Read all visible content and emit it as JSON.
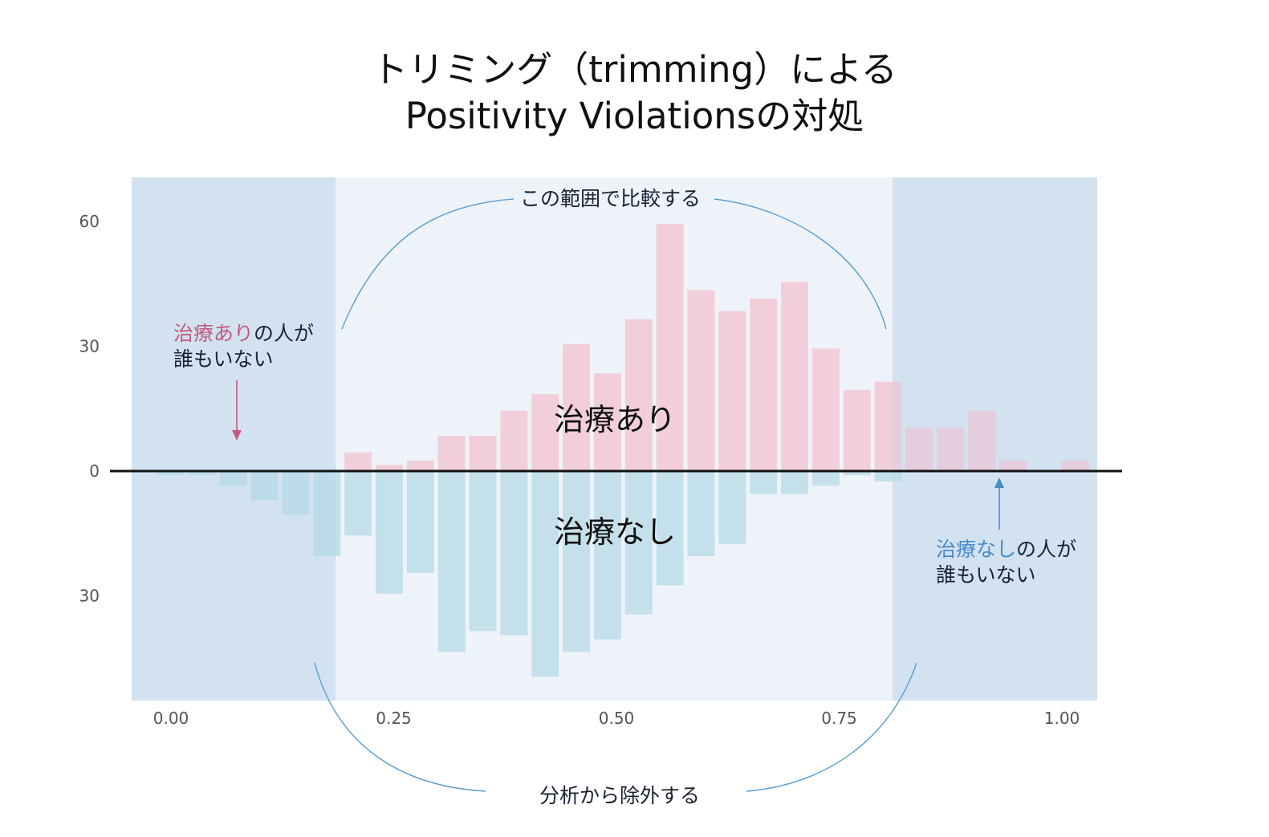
{
  "title": {
    "line1": "トリミング（trimming）による",
    "line2": "Positivity Violationsの対処"
  },
  "annotations": {
    "compare_range": "この範囲で比較する",
    "exclude": "分析から除外する",
    "treated_label": "治療あり",
    "untreated_label": "治療なし",
    "left_note_colored": "治療あり",
    "left_note_rest": "の人が",
    "left_note_line2": "誰もいない",
    "right_note_colored": "治療なし",
    "right_note_rest": "の人が",
    "right_note_line2": "誰もいない"
  },
  "colors": {
    "treated_bar": "#f2cedb",
    "untreated_bar": "#c4e0ea",
    "excluded_region": "#dde8f4",
    "compare_region": "#eef3fa",
    "treated_text": "#c35a7e",
    "untreated_text": "#4a8cc6",
    "arc": "#5b9ccc"
  },
  "chart_data": {
    "type": "bar",
    "x_tick_labels": [
      "0.00",
      "0.25",
      "0.50",
      "0.75",
      "1.00"
    ],
    "x_ticks": [
      0,
      0.25,
      0.5,
      0.75,
      1.0
    ],
    "y_tick_labels": [
      "60",
      "30",
      "0",
      "30"
    ],
    "y_ticks": [
      60,
      30,
      0,
      -30
    ],
    "xlim": [
      -0.045,
      1.04
    ],
    "ylim": [
      -55,
      71
    ],
    "compare_range": [
      0.185,
      0.81
    ],
    "bin_centers": [
      0.0,
      0.035,
      0.07,
      0.105,
      0.14,
      0.175,
      0.21,
      0.245,
      0.28,
      0.315,
      0.35,
      0.385,
      0.42,
      0.455,
      0.49,
      0.525,
      0.56,
      0.595,
      0.63,
      0.665,
      0.7,
      0.735,
      0.77,
      0.805,
      0.84,
      0.875,
      0.91,
      0.945,
      0.98,
      1.015
    ],
    "series": [
      {
        "name": "治療あり",
        "values": [
          0,
          0,
          0,
          0,
          0,
          0,
          4.5,
          1.5,
          2.5,
          8.5,
          8.5,
          14.5,
          18.5,
          30.5,
          23.5,
          36.5,
          59.5,
          43.5,
          38.5,
          41.5,
          45.5,
          29.5,
          19.5,
          21.5,
          10.5,
          10.5,
          14.5,
          2.5,
          0,
          2.5
        ]
      },
      {
        "name": "治療なし",
        "values": [
          -1,
          -1,
          -3.5,
          -7,
          -10.5,
          -20.5,
          -15.5,
          -29.5,
          -24.5,
          -43.5,
          -38.5,
          -39.5,
          -49.5,
          -43.5,
          -40.5,
          -34.5,
          -27.5,
          -20.5,
          -17.5,
          -5.5,
          -5.5,
          -3.5,
          -1,
          -2.5,
          0,
          0,
          0,
          0,
          0,
          0
        ]
      }
    ]
  }
}
